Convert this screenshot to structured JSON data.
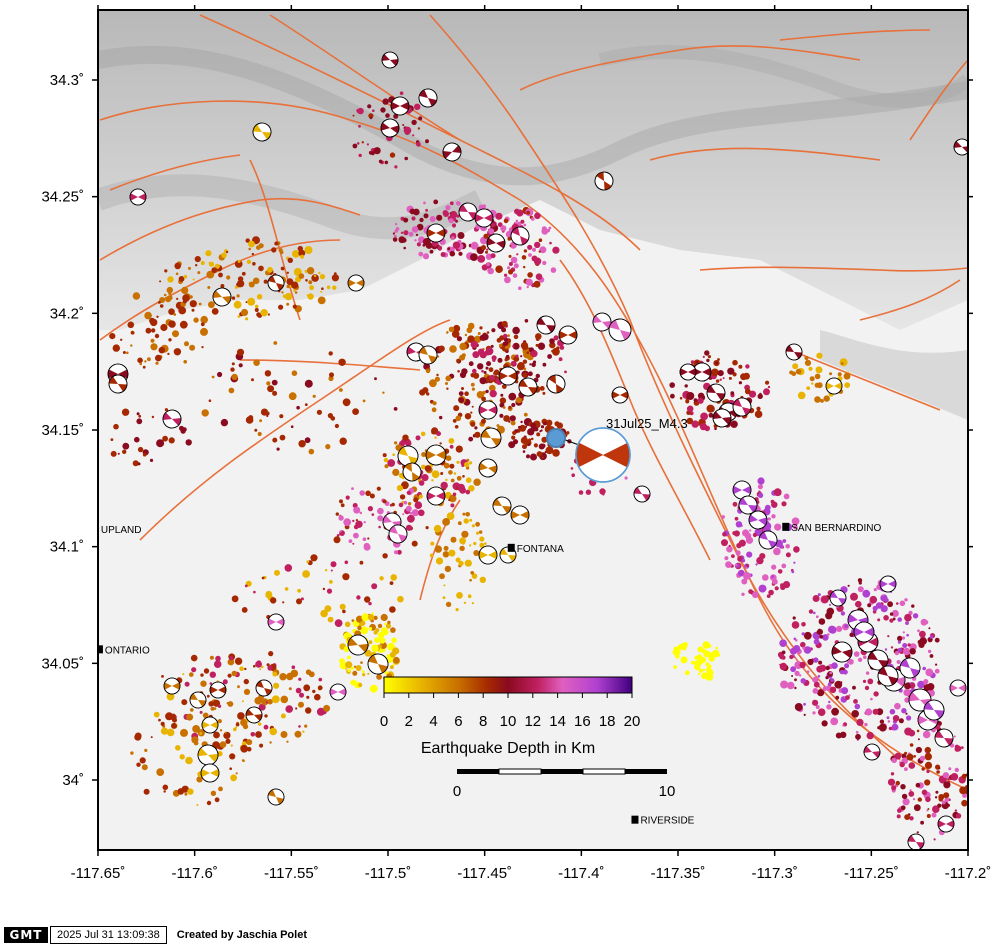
{
  "map": {
    "lon_range": [
      -117.65,
      -117.2
    ],
    "lat_range": [
      33.97,
      34.33
    ],
    "x_ticks": [
      {
        "lon": -117.65,
        "label": "-117.65˚"
      },
      {
        "lon": -117.6,
        "label": "-117.6˚"
      },
      {
        "lon": -117.55,
        "label": "-117.55˚"
      },
      {
        "lon": -117.5,
        "label": "-117.5˚"
      },
      {
        "lon": -117.45,
        "label": "-117.45˚"
      },
      {
        "lon": -117.4,
        "label": "-117.4˚"
      },
      {
        "lon": -117.35,
        "label": "-117.35˚"
      },
      {
        "lon": -117.3,
        "label": "-117.3˚"
      },
      {
        "lon": -117.25,
        "label": "-117.25˚"
      },
      {
        "lon": -117.2,
        "label": "-117.2˚"
      }
    ],
    "y_ticks": [
      {
        "lat": 34.0,
        "label": "34˚"
      },
      {
        "lat": 34.05,
        "label": "34.05˚"
      },
      {
        "lat": 34.1,
        "label": "34.1˚"
      },
      {
        "lat": 34.15,
        "label": "34.15˚"
      },
      {
        "lat": 34.2,
        "label": "34.2˚"
      },
      {
        "lat": 34.25,
        "label": "34.25˚"
      },
      {
        "lat": 34.3,
        "label": "34.3˚"
      }
    ],
    "cities": [
      {
        "name": "UPLAND",
        "lon": -117.6485,
        "lat": 34.1075,
        "label_side": "right"
      },
      {
        "name": "ONTARIO",
        "lon": -117.649,
        "lat": 34.056,
        "label_side": "right"
      },
      {
        "name": "FONTANA",
        "lon": -117.436,
        "lat": 34.0995,
        "label_side": "right"
      },
      {
        "name": "SAN BERNARDINO",
        "lon": -117.294,
        "lat": 34.1085,
        "label_side": "right"
      },
      {
        "name": "RIVERSIDE",
        "lon": -117.372,
        "lat": 33.983,
        "label_side": "right"
      }
    ],
    "main_event": {
      "label": "31Jul25_M4.3",
      "lon": -117.408,
      "lat": 34.143
    }
  },
  "colorbar": {
    "title": "Earthquake Depth in Km",
    "ticks": [
      "0",
      "2",
      "4",
      "6",
      "8",
      "10",
      "12",
      "14",
      "16",
      "18",
      "20"
    ],
    "colors": [
      "#ffff00",
      "#e8b400",
      "#c87000",
      "#a52800",
      "#8a0a20",
      "#c02060",
      "#e060c0",
      "#b040d0",
      "#400080"
    ]
  },
  "scale_bar": {
    "labels": [
      "0",
      "10"
    ]
  },
  "footer": {
    "logo": "GMT",
    "timestamp": "2025 Jul 31 13:09:38",
    "credit": "Created by Jaschia Polet"
  }
}
